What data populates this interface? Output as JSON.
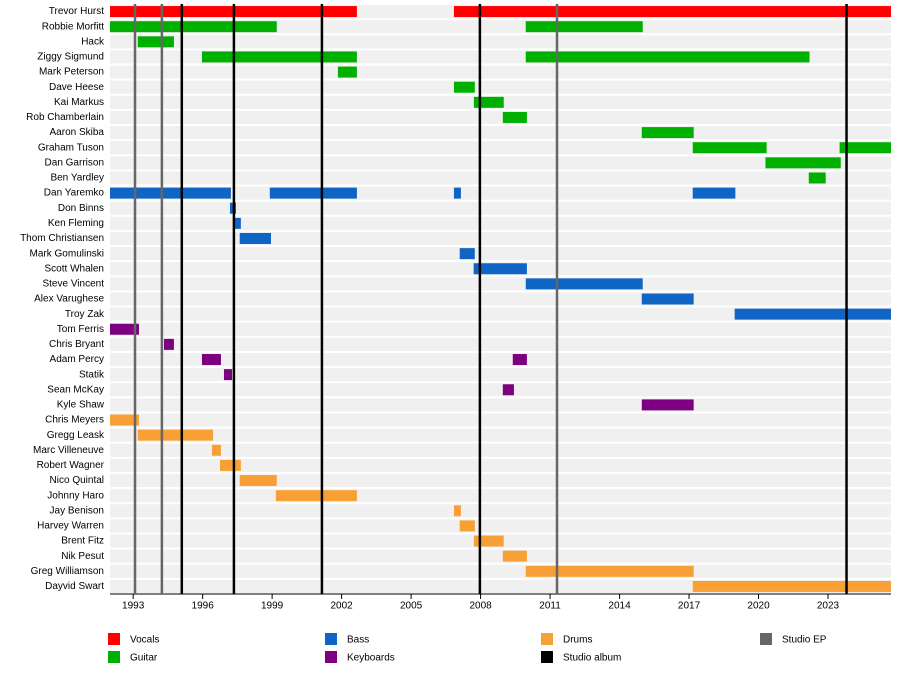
{
  "chart_data": {
    "type": "timeline",
    "xlim": [
      1992,
      2025.72
    ],
    "xticks": [
      1993,
      1996,
      1999,
      2002,
      2005,
      2008,
      2011,
      2014,
      2017,
      2020,
      2023
    ],
    "series": [
      {
        "name": "Vocals",
        "color": "#ff0000"
      },
      {
        "name": "Guitar",
        "color": "#00b000"
      },
      {
        "name": "Bass",
        "color": "#1064c4"
      },
      {
        "name": "Keyboards",
        "color": "#7d0080"
      },
      {
        "name": "Drums",
        "color": "#f8a035"
      }
    ],
    "events": [
      {
        "name": "Studio album",
        "color": "#000000",
        "x": [
          1995.1,
          1997.35,
          2001.15,
          2007.97,
          2023.8
        ]
      },
      {
        "name": "Studio EP",
        "color": "#666666",
        "x": [
          1993.08,
          1994.24,
          2011.3
        ]
      }
    ],
    "members": [
      {
        "name": "Trevor Hurst",
        "role": "Vocals",
        "periods": [
          [
            1992,
            2002.66
          ],
          [
            2006.85,
            2025.72
          ]
        ]
      },
      {
        "name": "Robbie Morfitt",
        "role": "Guitar",
        "periods": [
          [
            1992,
            1999.2
          ],
          [
            2009.95,
            2015.0
          ]
        ]
      },
      {
        "name": "Hack",
        "role": "Guitar",
        "periods": [
          [
            1993.2,
            1994.76
          ]
        ]
      },
      {
        "name": "Ziggy Sigmund",
        "role": "Guitar",
        "periods": [
          [
            1995.97,
            2002.66
          ],
          [
            2009.95,
            2022.2
          ]
        ]
      },
      {
        "name": "Mark Peterson",
        "role": "Guitar",
        "periods": [
          [
            2001.84,
            2002.66
          ]
        ]
      },
      {
        "name": "Dave Heese",
        "role": "Guitar",
        "periods": [
          [
            2006.85,
            2007.75
          ]
        ]
      },
      {
        "name": "Kai Markus",
        "role": "Guitar",
        "periods": [
          [
            2007.71,
            2009.0
          ]
        ]
      },
      {
        "name": "Rob Chamberlain",
        "role": "Guitar",
        "periods": [
          [
            2008.96,
            2010.0
          ]
        ]
      },
      {
        "name": "Aaron Skiba",
        "role": "Guitar",
        "periods": [
          [
            2014.96,
            2017.2
          ]
        ]
      },
      {
        "name": "Graham Tuson",
        "role": "Guitar",
        "periods": [
          [
            2017.16,
            2020.35
          ],
          [
            2023.5,
            2025.72
          ]
        ]
      },
      {
        "name": "Dan Garrison",
        "role": "Guitar",
        "periods": [
          [
            2020.3,
            2023.55
          ]
        ]
      },
      {
        "name": "Ben Yardley",
        "role": "Guitar",
        "periods": [
          [
            2022.17,
            2022.9
          ]
        ]
      },
      {
        "name": "Dan Yaremko",
        "role": "Bass",
        "periods": [
          [
            1992,
            1997.22
          ],
          [
            1998.9,
            2002.66
          ],
          [
            2006.85,
            2007.15
          ],
          [
            2017.16,
            2019.0
          ]
        ]
      },
      {
        "name": "Don Binns",
        "role": "Bass",
        "periods": [
          [
            1997.18,
            1997.44
          ]
        ]
      },
      {
        "name": "Ken Fleming",
        "role": "Bass",
        "periods": [
          [
            1997.4,
            1997.65
          ]
        ]
      },
      {
        "name": "Thom Christiansen",
        "role": "Bass",
        "periods": [
          [
            1997.6,
            1998.95
          ]
        ]
      },
      {
        "name": "Mark Gomulinski",
        "role": "Bass",
        "periods": [
          [
            2007.1,
            2007.75
          ]
        ]
      },
      {
        "name": "Scott Whalen",
        "role": "Bass",
        "periods": [
          [
            2007.7,
            2010.0
          ]
        ]
      },
      {
        "name": "Steve Vincent",
        "role": "Bass",
        "periods": [
          [
            2009.95,
            2015.0
          ]
        ]
      },
      {
        "name": "Alex Varughese",
        "role": "Bass",
        "periods": [
          [
            2014.96,
            2017.2
          ]
        ]
      },
      {
        "name": "Troy Zak",
        "role": "Bass",
        "periods": [
          [
            2018.97,
            2025.72
          ]
        ]
      },
      {
        "name": "Tom Ferris",
        "role": "Keyboards",
        "periods": [
          [
            1992,
            1993.25
          ]
        ]
      },
      {
        "name": "Chris Bryant",
        "role": "Keyboards",
        "periods": [
          [
            1994.33,
            1994.76
          ]
        ]
      },
      {
        "name": "Adam Percy",
        "role": "Keyboards",
        "periods": [
          [
            1995.97,
            1996.79
          ],
          [
            2009.39,
            2010.0
          ]
        ]
      },
      {
        "name": "Statik",
        "role": "Keyboards",
        "periods": [
          [
            1996.92,
            1997.27
          ]
        ]
      },
      {
        "name": "Sean McKay",
        "role": "Keyboards",
        "periods": [
          [
            2008.96,
            2009.44
          ]
        ]
      },
      {
        "name": "Kyle Shaw",
        "role": "Keyboards",
        "periods": [
          [
            2014.96,
            2017.2
          ]
        ]
      },
      {
        "name": "Chris Meyers",
        "role": "Drums",
        "periods": [
          [
            1992,
            1993.25
          ]
        ]
      },
      {
        "name": "Gregg Leask",
        "role": "Drums",
        "periods": [
          [
            1993.2,
            1996.45
          ]
        ]
      },
      {
        "name": "Marc Villeneuve",
        "role": "Drums",
        "periods": [
          [
            1996.4,
            1996.79
          ]
        ]
      },
      {
        "name": "Robert Wagner",
        "role": "Drums",
        "periods": [
          [
            1996.75,
            1997.65
          ]
        ]
      },
      {
        "name": "Nico Quintal",
        "role": "Drums",
        "periods": [
          [
            1997.6,
            1999.2
          ]
        ]
      },
      {
        "name": "Johnny Haro",
        "role": "Drums",
        "periods": [
          [
            1999.16,
            2002.66
          ]
        ]
      },
      {
        "name": "Jay Benison",
        "role": "Drums",
        "periods": [
          [
            2006.85,
            2007.15
          ]
        ]
      },
      {
        "name": "Harvey Warren",
        "role": "Drums",
        "periods": [
          [
            2007.1,
            2007.75
          ]
        ]
      },
      {
        "name": "Brent Fitz",
        "role": "Drums",
        "periods": [
          [
            2007.71,
            2009.0
          ]
        ]
      },
      {
        "name": "Nik Pesut",
        "role": "Drums",
        "periods": [
          [
            2008.96,
            2010.0
          ]
        ]
      },
      {
        "name": "Greg Williamson",
        "role": "Drums",
        "periods": [
          [
            2009.95,
            2017.2
          ]
        ]
      },
      {
        "name": "Dayvid Swart",
        "role": "Drums",
        "periods": [
          [
            2017.16,
            2025.72
          ]
        ]
      }
    ]
  }
}
